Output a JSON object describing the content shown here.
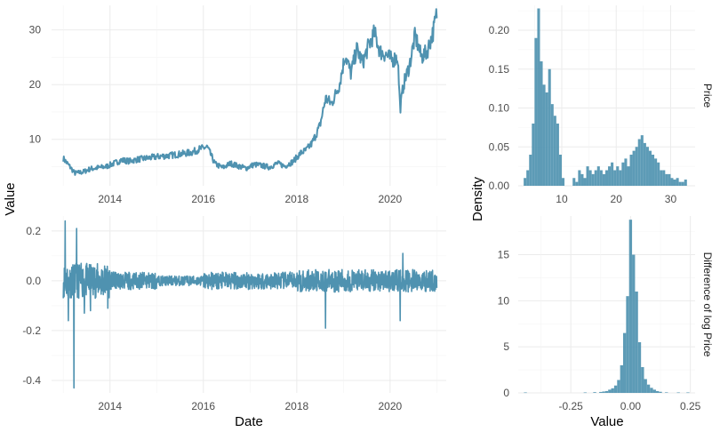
{
  "colors": {
    "series": "#4f92b0",
    "grid": "#ebebeb"
  },
  "chart_data": [
    {
      "type": "line",
      "panel": "price-timeseries",
      "ylabel": "Value",
      "xlabel": "",
      "x_ticks": [
        "2014",
        "2016",
        "2018",
        "2020"
      ],
      "y_ticks": [
        "10",
        "20",
        "30"
      ],
      "xlim": [
        "2012-10-01",
        "2021-03-15"
      ],
      "ylim": [
        1.5,
        34.5
      ],
      "series": [
        {
          "x": [
            "2013-01-01",
            "2013-02-15",
            "2013-04-01",
            "2013-06-01",
            "2013-08-01",
            "2013-10-01",
            "2013-12-01",
            "2014-02-01",
            "2014-04-01",
            "2014-06-01",
            "2014-08-01",
            "2014-10-01",
            "2014-12-01",
            "2015-02-01",
            "2015-04-01",
            "2015-06-01",
            "2015-08-01",
            "2015-10-01",
            "2015-12-01",
            "2016-02-01",
            "2016-04-01",
            "2016-06-01",
            "2016-08-01",
            "2016-10-01",
            "2016-12-01",
            "2017-02-01",
            "2017-04-01",
            "2017-06-01",
            "2017-08-01",
            "2017-10-01",
            "2017-12-01",
            "2018-02-01",
            "2018-03-15",
            "2018-05-01",
            "2018-07-01",
            "2018-08-15",
            "2018-10-01",
            "2018-12-01",
            "2019-01-15",
            "2019-03-01",
            "2019-04-15",
            "2019-06-01",
            "2019-07-15",
            "2019-09-01",
            "2019-10-15",
            "2019-12-01",
            "2020-01-15",
            "2020-03-01",
            "2020-03-20",
            "2020-04-15",
            "2020-06-01",
            "2020-07-15",
            "2020-09-01",
            "2020-10-15",
            "2020-12-01",
            "2020-12-31"
          ],
          "values": [
            6.5,
            5.2,
            3.8,
            4.0,
            4.6,
            4.8,
            5.0,
            5.6,
            6.2,
            6.0,
            6.3,
            6.5,
            6.7,
            6.9,
            7.0,
            7.2,
            7.4,
            7.6,
            8.2,
            8.6,
            5.5,
            4.8,
            5.6,
            5.1,
            4.7,
            5.4,
            5.2,
            4.9,
            5.6,
            5.1,
            5.9,
            7.5,
            8.0,
            9.3,
            12.5,
            17.5,
            16.5,
            20.0,
            25.5,
            22.0,
            26.5,
            24.0,
            27.0,
            29.5,
            26.0,
            25.5,
            24.5,
            25.0,
            15.5,
            20.0,
            23.5,
            29.0,
            25.0,
            26.0,
            29.5,
            33.0
          ]
        }
      ]
    },
    {
      "type": "line",
      "panel": "logdiff-timeseries",
      "ylabel": "",
      "xlabel": "Date",
      "x_ticks": [
        "2014",
        "2016",
        "2018",
        "2020"
      ],
      "y_ticks": [
        "0.2",
        "0.0",
        "-0.2",
        "-0.4"
      ],
      "xlim": [
        "2012-10-01",
        "2021-03-15"
      ],
      "ylim": [
        -0.45,
        0.26
      ],
      "series": [
        {
          "spikes": [
            {
              "x": "2013-01-15",
              "value": 0.24
            },
            {
              "x": "2013-02-10",
              "value": -0.16
            },
            {
              "x": "2013-03-25",
              "value": -0.43
            },
            {
              "x": "2013-04-15",
              "value": 0.21
            },
            {
              "x": "2013-06-15",
              "value": -0.13
            },
            {
              "x": "2013-08-01",
              "value": -0.12
            },
            {
              "x": "2013-12-15",
              "value": -0.11
            },
            {
              "x": "2018-08-15",
              "value": -0.19
            },
            {
              "x": "2020-03-20",
              "value": -0.16
            },
            {
              "x": "2020-04-10",
              "value": 0.11
            }
          ]
        }
      ]
    },
    {
      "type": "bar",
      "panel": "price-histogram",
      "strip_label": "Price",
      "ylabel": "Density",
      "x_ticks": [
        "10",
        "20",
        "30"
      ],
      "y_ticks": [
        "0.00",
        "0.05",
        "0.10",
        "0.15",
        "0.20"
      ],
      "xlim": [
        2.0,
        34.5
      ],
      "ylim": [
        0,
        0.232
      ],
      "bin_width": 0.5,
      "bin_centers": [
        3.25,
        3.75,
        4.25,
        4.75,
        5.25,
        5.75,
        6.25,
        6.75,
        7.25,
        7.75,
        8.25,
        8.75,
        9.25,
        9.75,
        10.25,
        12.25,
        12.75,
        13.25,
        13.75,
        14.25,
        14.75,
        15.25,
        15.75,
        16.25,
        16.75,
        17.25,
        17.75,
        18.25,
        18.75,
        19.25,
        19.75,
        20.25,
        20.75,
        21.25,
        21.75,
        22.25,
        22.75,
        23.25,
        23.75,
        24.25,
        24.75,
        25.25,
        25.75,
        26.25,
        26.75,
        27.25,
        27.75,
        28.25,
        28.75,
        29.25,
        29.75,
        30.25,
        30.75,
        31.25,
        31.75,
        32.25,
        32.75
      ],
      "values": [
        0.01,
        0.02,
        0.04,
        0.08,
        0.19,
        0.228,
        0.16,
        0.13,
        0.12,
        0.15,
        0.105,
        0.09,
        0.08,
        0.04,
        0.01,
        0.01,
        0.005,
        0.02,
        0.015,
        0.01,
        0.025,
        0.02,
        0.015,
        0.02,
        0.025,
        0.02,
        0.015,
        0.02,
        0.025,
        0.03,
        0.02,
        0.025,
        0.02,
        0.03,
        0.035,
        0.025,
        0.04,
        0.045,
        0.05,
        0.06,
        0.065,
        0.055,
        0.05,
        0.045,
        0.04,
        0.035,
        0.03,
        0.02,
        0.02,
        0.015,
        0.015,
        0.01,
        0.008,
        0.01,
        0.005,
        0.005,
        0.008
      ]
    },
    {
      "type": "bar",
      "panel": "logdiff-histogram",
      "strip_label": "Difference of log Price",
      "xlabel": "Value",
      "x_ticks": [
        "-0.25",
        "0.00",
        "0.25"
      ],
      "y_ticks": [
        "0",
        "5",
        "10",
        "15"
      ],
      "xlim": [
        -0.47,
        0.27
      ],
      "ylim": [
        0,
        19.2
      ],
      "bin_width": 0.0125,
      "bin_centers": [
        -0.44,
        -0.19,
        -0.15,
        -0.125,
        -0.1125,
        -0.1,
        -0.0875,
        -0.075,
        -0.0625,
        -0.05,
        -0.0375,
        -0.025,
        -0.0125,
        0.0,
        0.0125,
        0.025,
        0.0375,
        0.05,
        0.0625,
        0.075,
        0.0875,
        0.1,
        0.1125,
        0.125,
        0.15,
        0.2,
        0.24
      ],
      "values": [
        0.05,
        0.05,
        0.08,
        0.1,
        0.15,
        0.2,
        0.35,
        0.5,
        0.8,
        1.4,
        3.0,
        6.5,
        10.5,
        18.8,
        15.0,
        11.0,
        5.5,
        2.8,
        1.5,
        0.9,
        0.55,
        0.35,
        0.2,
        0.12,
        0.06,
        0.05,
        0.05
      ]
    }
  ]
}
